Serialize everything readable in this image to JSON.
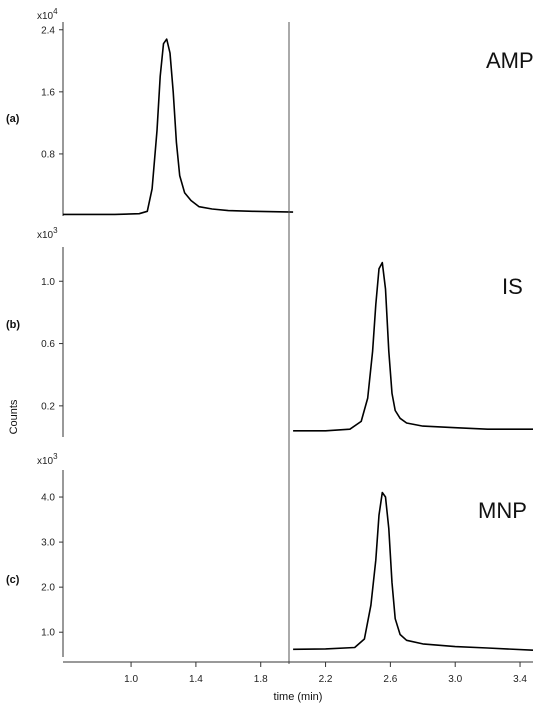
{
  "chart_data": {
    "type": "line",
    "xlabel": "time (min)",
    "ylabel": "Counts",
    "xlim": [
      0.58,
      3.48
    ],
    "x_ticks": [
      1.0,
      1.4,
      1.8,
      2.2,
      2.6,
      3.0,
      3.4
    ],
    "x_tick_labels": [
      "1.0",
      "1.4",
      "1.8",
      "2.2",
      "2.6",
      "3.0",
      "3.4"
    ],
    "panels": [
      {
        "letter": "(a)",
        "label": "AMP",
        "multiplier_base": "x10",
        "multiplier_exp": "4",
        "ylim": [
          0,
          2.5
        ],
        "y_ticks": [
          0.8,
          1.6,
          2.4
        ],
        "y_tick_labels": [
          "0.8",
          "1.6",
          "2.4"
        ],
        "x": [
          0.58,
          0.9,
          1.05,
          1.1,
          1.13,
          1.16,
          1.18,
          1.2,
          1.22,
          1.24,
          1.26,
          1.28,
          1.3,
          1.33,
          1.37,
          1.42,
          1.5,
          1.6,
          1.75,
          2.0
        ],
        "y": [
          0.02,
          0.02,
          0.03,
          0.06,
          0.35,
          1.1,
          1.8,
          2.22,
          2.28,
          2.1,
          1.6,
          0.95,
          0.52,
          0.3,
          0.2,
          0.12,
          0.09,
          0.07,
          0.06,
          0.05
        ]
      },
      {
        "letter": "(b)",
        "label": "IS",
        "multiplier_base": "x10",
        "multiplier_exp": "3",
        "ylim": [
          0,
          1.22
        ],
        "y_ticks": [
          0.2,
          0.6,
          1.0
        ],
        "y_tick_labels": [
          "0.2",
          "0.6",
          "1.0"
        ],
        "x": [
          2.0,
          2.2,
          2.35,
          2.42,
          2.46,
          2.49,
          2.51,
          2.53,
          2.55,
          2.57,
          2.59,
          2.61,
          2.63,
          2.66,
          2.7,
          2.8,
          3.0,
          3.2,
          3.48
        ],
        "y": [
          0.04,
          0.04,
          0.05,
          0.1,
          0.25,
          0.55,
          0.85,
          1.08,
          1.12,
          0.95,
          0.55,
          0.28,
          0.17,
          0.12,
          0.09,
          0.07,
          0.06,
          0.05,
          0.05
        ]
      },
      {
        "letter": "(c)",
        "label": "MNP",
        "multiplier_base": "x10",
        "multiplier_exp": "3",
        "ylim": [
          0.45,
          4.6
        ],
        "y_ticks": [
          1.0,
          2.0,
          3.0,
          4.0
        ],
        "y_tick_labels": [
          "1.0",
          "2.0",
          "3.0",
          "4.0"
        ],
        "x": [
          2.0,
          2.2,
          2.38,
          2.44,
          2.48,
          2.51,
          2.53,
          2.55,
          2.57,
          2.59,
          2.61,
          2.63,
          2.66,
          2.7,
          2.8,
          3.0,
          3.2,
          3.48
        ],
        "y": [
          0.62,
          0.63,
          0.66,
          0.85,
          1.6,
          2.6,
          3.6,
          4.1,
          4.0,
          3.3,
          2.1,
          1.3,
          0.95,
          0.82,
          0.74,
          0.68,
          0.65,
          0.6
        ]
      }
    ]
  }
}
